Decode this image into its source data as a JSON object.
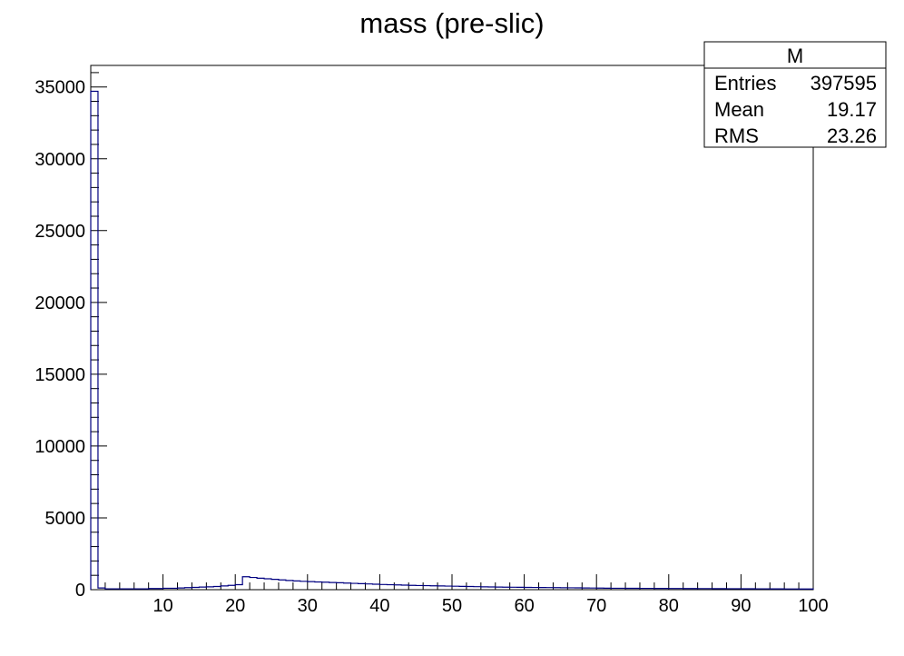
{
  "chart_data": {
    "type": "bar",
    "title": "mass (pre-slic)",
    "xlabel": "",
    "ylabel": "",
    "xlim": [
      0,
      100
    ],
    "ylim": [
      0,
      36500
    ],
    "x_ticks": [
      10,
      20,
      30,
      40,
      50,
      60,
      70,
      80,
      90,
      100
    ],
    "y_ticks": [
      0,
      5000,
      10000,
      15000,
      20000,
      25000,
      30000,
      35000
    ],
    "grid": false,
    "line_color": "#000080",
    "bin_width": 1,
    "bin_edges_start": 0,
    "values": [
      34700,
      120,
      60,
      60,
      60,
      60,
      60,
      60,
      80,
      80,
      100,
      100,
      120,
      140,
      160,
      180,
      200,
      220,
      260,
      300,
      350,
      900,
      850,
      800,
      760,
      720,
      680,
      640,
      610,
      580,
      560,
      540,
      520,
      500,
      480,
      460,
      440,
      420,
      400,
      380,
      360,
      345,
      330,
      315,
      300,
      290,
      280,
      270,
      260,
      250,
      240,
      230,
      220,
      210,
      200,
      190,
      180,
      175,
      170,
      165,
      160,
      155,
      150,
      145,
      140,
      135,
      130,
      125,
      120,
      115,
      110,
      105,
      100,
      98,
      96,
      94,
      92,
      90,
      88,
      86,
      84,
      82,
      80,
      78,
      76,
      74,
      72,
      70,
      68,
      66,
      64,
      62,
      60,
      58,
      56,
      54,
      52,
      50,
      48,
      46
    ],
    "stats_box": {
      "name": "M",
      "rows": [
        {
          "label": "Entries",
          "value": "397595"
        },
        {
          "label": "Mean",
          "value": "19.17"
        },
        {
          "label": "RMS",
          "value": "23.26"
        }
      ]
    }
  }
}
